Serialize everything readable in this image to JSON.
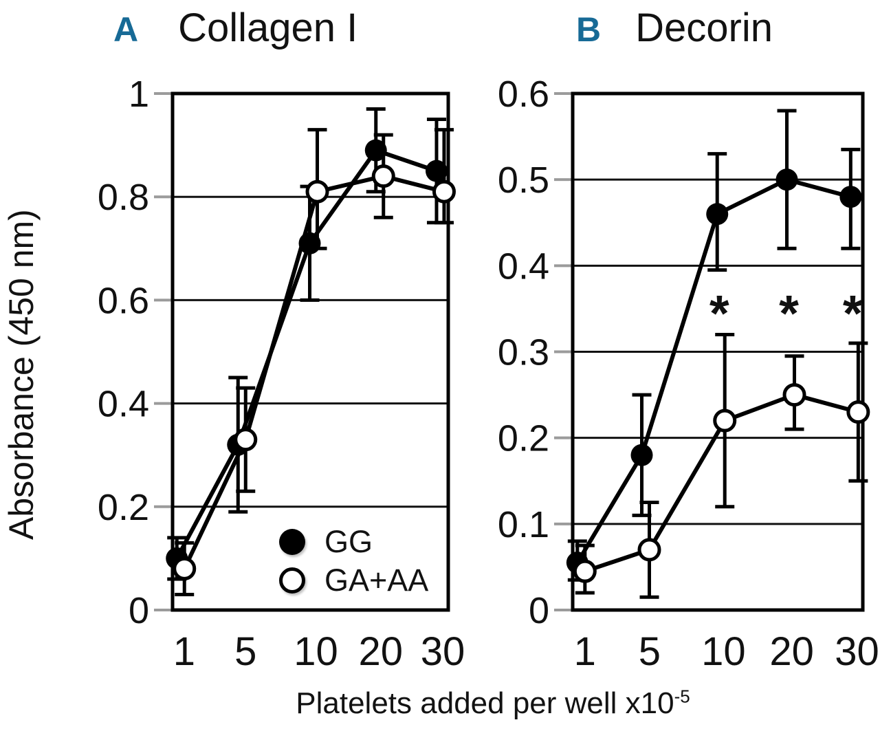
{
  "figure": {
    "y_axis_label": "Absorbance (450 nm)",
    "x_axis_label_base": "Platelets added per well x10",
    "x_axis_label_exponent": "-5",
    "legend": [
      {
        "label": "GG",
        "marker": "filled"
      },
      {
        "label": "GA+AA",
        "marker": "open"
      }
    ],
    "colors": {
      "panel_letter": "#176a96",
      "line": "#000000",
      "gridline": "#111111",
      "tick_mark": "#9b9b9b",
      "background": "#ffffff"
    }
  },
  "chart_data": [
    {
      "type": "line",
      "panel_letter": "A",
      "title": "Collagen I",
      "xlabel": "Platelets added per well x10^-5",
      "ylabel": "Absorbance (450 nm)",
      "categories": [
        "1",
        "5",
        "10",
        "20",
        "30"
      ],
      "ylim": [
        0,
        1
      ],
      "grid": true,
      "legend_position": "inside-bottom-right",
      "yticks": [
        {
          "value": 1,
          "label": "1"
        },
        {
          "value": 0.8,
          "label": "0.8"
        },
        {
          "value": 0.6,
          "label": "0.6"
        },
        {
          "value": 0.4,
          "label": "0.4"
        },
        {
          "value": 0.2,
          "label": "0.2"
        },
        {
          "value": 0,
          "label": "0"
        }
      ],
      "series": [
        {
          "name": "GG",
          "marker": "filled",
          "values": [
            0.1,
            0.32,
            0.71,
            0.89,
            0.85
          ],
          "err_lo": [
            0.06,
            0.19,
            0.6,
            0.81,
            0.75
          ],
          "err_hi": [
            0.14,
            0.45,
            0.82,
            0.97,
            0.95
          ]
        },
        {
          "name": "GA+AA",
          "marker": "open",
          "values": [
            0.08,
            0.33,
            0.81,
            0.84,
            0.81
          ],
          "err_lo": [
            0.03,
            0.23,
            0.7,
            0.76,
            0.75
          ],
          "err_hi": [
            0.13,
            0.43,
            0.93,
            0.92,
            0.93
          ]
        }
      ],
      "annotations": []
    },
    {
      "type": "line",
      "panel_letter": "B",
      "title": "Decorin",
      "xlabel": "Platelets added per well x10^-5",
      "ylabel": "Absorbance (450 nm)",
      "categories": [
        "1",
        "5",
        "10",
        "20",
        "30"
      ],
      "ylim": [
        0,
        0.6
      ],
      "grid": true,
      "legend_position": "none",
      "yticks": [
        {
          "value": 0.6,
          "label": "0.6"
        },
        {
          "value": 0.5,
          "label": "0.5"
        },
        {
          "value": 0.4,
          "label": "0.4"
        },
        {
          "value": 0.3,
          "label": "0.3"
        },
        {
          "value": 0.2,
          "label": "0.2"
        },
        {
          "value": 0.1,
          "label": "0.1"
        },
        {
          "value": 0,
          "label": "0"
        }
      ],
      "series": [
        {
          "name": "GG",
          "marker": "filled",
          "values": [
            0.055,
            0.18,
            0.46,
            0.5,
            0.48
          ],
          "err_lo": [
            0.035,
            0.11,
            0.395,
            0.42,
            0.42
          ],
          "err_hi": [
            0.08,
            0.25,
            0.53,
            0.58,
            0.535
          ]
        },
        {
          "name": "GA+AA",
          "marker": "open",
          "values": [
            0.045,
            0.07,
            0.22,
            0.25,
            0.23
          ],
          "err_lo": [
            0.02,
            0.015,
            0.12,
            0.21,
            0.15
          ],
          "err_hi": [
            0.075,
            0.125,
            0.32,
            0.295,
            0.31
          ]
        }
      ],
      "annotations": [
        {
          "text": "*",
          "category": "10",
          "y": 0.358
        },
        {
          "text": "*",
          "category": "20",
          "y": 0.358
        },
        {
          "text": "*",
          "category": "30",
          "y": 0.358
        }
      ]
    }
  ]
}
